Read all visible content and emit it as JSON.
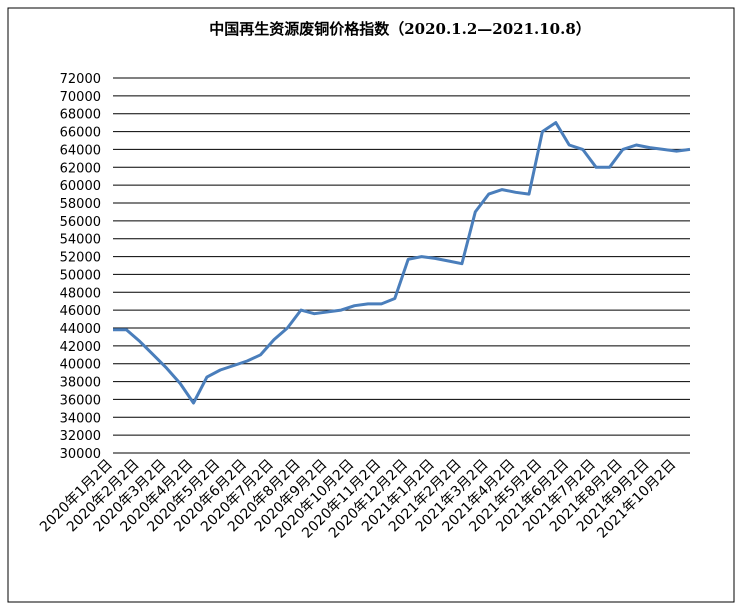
{
  "chart_data": {
    "type": "line",
    "title": "中国再生资源废铜价格指数（2020.1.2—2021.10.8）",
    "categories": [
      "2020年1月2日",
      null,
      "2020年2月2日",
      null,
      "2020年3月2日",
      null,
      "2020年4月2日",
      null,
      "2020年5月2日",
      null,
      "2020年6月2日",
      null,
      "2020年7月2日",
      null,
      "2020年8月2日",
      null,
      "2020年9月2日",
      null,
      "2020年10月2日",
      null,
      "2020年11月2日",
      null,
      "2020年12月2日",
      null,
      "2021年1月2日",
      null,
      "2021年2月2日",
      null,
      "2021年3月2日",
      null,
      "2021年4月2日",
      null,
      "2021年5月2日",
      null,
      "2021年6月2日",
      null,
      "2021年7月2日",
      null,
      "2021年8月2日",
      null,
      "2021年9月2日",
      null,
      "2021年10月2日",
      null
    ],
    "series": [
      {
        "name": "废铜价格指数",
        "color": "#4a7ebb",
        "values": [
          43800,
          43800,
          42500,
          41000,
          39500,
          37800,
          35600,
          38500,
          39300,
          39800,
          40300,
          41000,
          42700,
          44000,
          46000,
          45600,
          45800,
          46000,
          46500,
          46700,
          46700,
          47300,
          51700,
          52000,
          51800,
          51500,
          51200,
          57000,
          59000,
          59500,
          59200,
          59000,
          66000,
          67000,
          64500,
          64000,
          62000,
          62000,
          64000,
          64500,
          64200,
          64000,
          63800,
          64000
        ]
      }
    ],
    "ylim": [
      30000,
      72000
    ],
    "yticks": [
      30000,
      32000,
      34000,
      36000,
      38000,
      40000,
      42000,
      44000,
      46000,
      48000,
      50000,
      52000,
      54000,
      56000,
      58000,
      60000,
      62000,
      64000,
      66000,
      68000,
      70000,
      72000
    ],
    "grid": true
  }
}
